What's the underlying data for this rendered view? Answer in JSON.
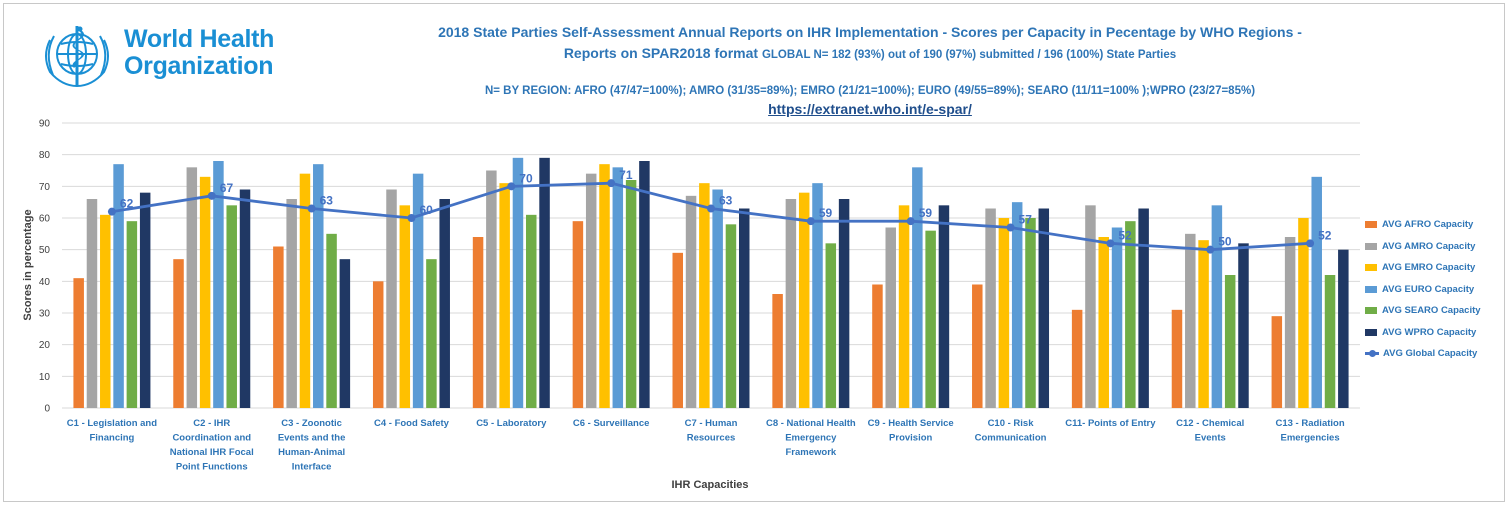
{
  "logo": {
    "line1": "World Health",
    "line2": "Organization"
  },
  "header": {
    "title_line1": "2018 State Parties Self-Assessment Annual Reports on IHR Implementation -  Scores per Capacity in Pecentage by WHO Regions -",
    "title_line2_main": "Reports on SPAR2018 format",
    "title_line2_small": "GLOBAL N= 182 (93%) out of 190 (97%) submitted / 196 (100%) State Parties",
    "regions_line": "N= BY REGION: AFRO (47/47=100%); AMRO (31/35=89%); EMRO (21/21=100%); EURO (49/55=89%); SEARO (11/11=100% );WPRO  (23/27=85%)",
    "link": "https://extranet.who.int/e-spar/"
  },
  "colors": {
    "afro": "#ed7d31",
    "amro": "#a5a5a5",
    "emro": "#ffc000",
    "euro": "#5b9bd5",
    "searo": "#70ad47",
    "wpro": "#203864",
    "global": "#4472c4",
    "text_blue": "#2e75b6"
  },
  "chart_data": {
    "type": "bar",
    "xlabel": "IHR Capacities",
    "ylabel": "Scores in percentage",
    "ylim": [
      0,
      90
    ],
    "yticks": [
      0,
      10,
      20,
      30,
      40,
      50,
      60,
      70,
      80,
      90
    ],
    "grid": true,
    "legend_position": "right",
    "categories": [
      "C1 - Legislation and Financing",
      "C2 - IHR Coordination and National IHR Focal Point Functions",
      "C3 - Zoonotic Events and the Human-Animal Interface",
      "C4 - Food Safety",
      "C5 - Laboratory",
      "C6 - Surveillance",
      "C7 - Human Resources",
      "C8 - National Health Emergency Framework",
      "C9 -  Health Service Provision",
      "C10 - Risk Communication",
      "C11- Points of Entry",
      "C12 - Chemical Events",
      "C13 - Radiation Emergencies"
    ],
    "category_label_lines": [
      [
        "C1 - Legislation and",
        "Financing"
      ],
      [
        "C2 - IHR",
        "Coordination and",
        "National IHR Focal",
        "Point Functions"
      ],
      [
        "C3 - Zoonotic",
        "Events and the",
        "Human-Animal",
        "Interface"
      ],
      [
        "C4 - Food Safety"
      ],
      [
        "C5 - Laboratory"
      ],
      [
        "C6 - Surveillance"
      ],
      [
        "C7 - Human",
        "Resources"
      ],
      [
        "C8 - National Health",
        "Emergency",
        "Framework"
      ],
      [
        "C9 -  Health Service",
        "Provision"
      ],
      [
        "C10 - Risk",
        "Communication"
      ],
      [
        "C11- Points of Entry"
      ],
      [
        "C12 - Chemical",
        "Events"
      ],
      [
        "C13 - Radiation",
        "Emergencies"
      ]
    ],
    "series": [
      {
        "name": "AVG AFRO Capacity",
        "color_key": "afro",
        "values": [
          41,
          47,
          51,
          40,
          54,
          59,
          49,
          36,
          39,
          39,
          31,
          31,
          29
        ]
      },
      {
        "name": "AVG AMRO Capacity",
        "color_key": "amro",
        "values": [
          66,
          76,
          66,
          69,
          75,
          74,
          67,
          66,
          57,
          63,
          64,
          55,
          54
        ]
      },
      {
        "name": "AVG EMRO Capacity",
        "color_key": "emro",
        "values": [
          61,
          73,
          74,
          64,
          71,
          77,
          71,
          68,
          64,
          60,
          54,
          53,
          60
        ]
      },
      {
        "name": "AVG EURO Capacity",
        "color_key": "euro",
        "values": [
          77,
          78,
          77,
          74,
          79,
          76,
          69,
          71,
          76,
          65,
          57,
          64,
          73
        ]
      },
      {
        "name": "AVG SEARO Capacity",
        "color_key": "searo",
        "values": [
          59,
          64,
          55,
          47,
          61,
          72,
          58,
          52,
          56,
          60,
          59,
          42,
          42
        ]
      },
      {
        "name": "AVG WPRO Capacity",
        "color_key": "wpro",
        "values": [
          68,
          69,
          47,
          66,
          79,
          78,
          63,
          66,
          64,
          63,
          63,
          52,
          50
        ]
      }
    ],
    "line_series": {
      "name": "AVG Global  Capacity",
      "color_key": "global",
      "values": [
        62,
        67,
        63,
        60,
        70,
        71,
        63,
        59,
        59,
        57,
        52,
        50,
        52
      ]
    }
  }
}
